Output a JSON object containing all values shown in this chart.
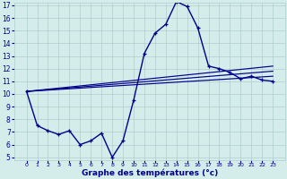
{
  "xlabel": "Graphe des températures (°c)",
  "bg_color": "#d4ecea",
  "line_color": "#00008b",
  "grid_color": "#b0cece",
  "hours": [
    0,
    1,
    2,
    3,
    4,
    5,
    6,
    7,
    8,
    9,
    10,
    11,
    12,
    13,
    14,
    15,
    16,
    17,
    18,
    19,
    20,
    21,
    22,
    23
  ],
  "temp_main": [
    10.2,
    7.5,
    7.1,
    6.8,
    7.1,
    6.0,
    6.3,
    6.9,
    5.0,
    6.3,
    9.5,
    13.2,
    14.8,
    15.5,
    17.3,
    16.9,
    15.2,
    12.2,
    12.0,
    11.7,
    11.2,
    11.4,
    11.1,
    11.0
  ],
  "line2": [
    [
      0,
      10.2
    ],
    [
      23,
      12.2
    ]
  ],
  "line3": [
    [
      0,
      10.2
    ],
    [
      23,
      11.8
    ]
  ],
  "line4": [
    [
      0,
      10.2
    ],
    [
      23,
      11.4
    ]
  ],
  "ylim_min": 5.0,
  "ylim_max": 17.0,
  "yticks": [
    5,
    6,
    7,
    8,
    9,
    10,
    11,
    12,
    13,
    14,
    15,
    16,
    17
  ],
  "xticks": [
    0,
    1,
    2,
    3,
    4,
    5,
    6,
    7,
    8,
    9,
    10,
    11,
    12,
    13,
    14,
    15,
    16,
    17,
    18,
    19,
    20,
    21,
    22,
    23
  ]
}
